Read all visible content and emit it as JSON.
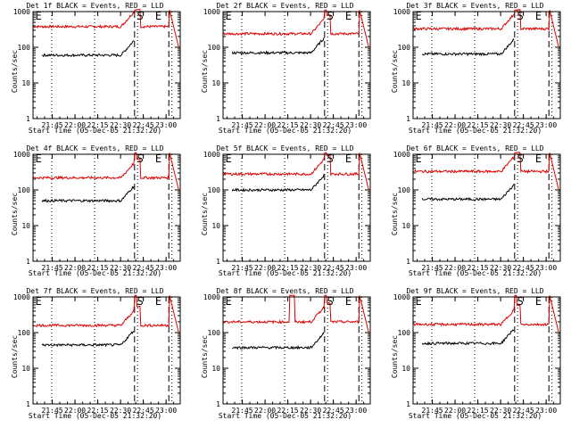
{
  "chart_data": {
    "type": "line",
    "ylabel": "Counts/sec",
    "xlabel": "Start Time (05-Dec-05 21:32:20)",
    "x_tick_labels": [
      "21:45",
      "22:00",
      "22:15",
      "22:30",
      "22:45",
      "23:00"
    ],
    "x_tick_minutes": [
      12.67,
      27.67,
      42.67,
      57.67,
      72.67,
      87.67
    ],
    "xlim": [
      0,
      97
    ],
    "ylim": [
      1,
      1000
    ],
    "yscale": "log",
    "y_tick_labels": [
      "1",
      "10",
      "100",
      "1000"
    ],
    "y_tick_values": [
      1,
      10,
      100,
      1000
    ],
    "series_colors": {
      "events": "#000000",
      "lld": "#dd0000"
    },
    "markers": {
      "dotted_minutes": [
        12.3,
        40.6,
        68.9,
        91.5
      ],
      "dashed_minutes": [
        66.9,
        89.5
      ],
      "letters": [
        {
          "text": "E",
          "x": 1.5
        },
        {
          "text": "S",
          "x": 68.5
        },
        {
          "text": "E",
          "x": 80.5
        }
      ]
    },
    "panels": [
      {
        "title": "Det 1f BLACK = Events, RED = LLD",
        "red_level": 380,
        "black_level": 60,
        "red_start": 0,
        "black_start": 6,
        "spike": null
      },
      {
        "title": "Det 2f BLACK = Events, RED = LLD",
        "red_level": 240,
        "black_level": 70,
        "red_start": 0,
        "black_start": 6,
        "spike": null
      },
      {
        "title": "Det 3f BLACK = Events, RED = LLD",
        "red_level": 330,
        "black_level": 65,
        "red_start": 0,
        "black_start": 6,
        "spike": null
      },
      {
        "title": "Det 4f BLACK = Events, RED = LLD",
        "red_level": 220,
        "black_level": 50,
        "red_start": 0,
        "black_start": 6,
        "spike": null
      },
      {
        "title": "Det 5f BLACK = Events, RED = LLD",
        "red_level": 280,
        "black_level": 100,
        "red_start": 0,
        "black_start": 6,
        "spike": null
      },
      {
        "title": "Det 6f BLACK = Events, RED = LLD",
        "red_level": 330,
        "black_level": 55,
        "red_start": 0,
        "black_start": 6,
        "spike": null
      },
      {
        "title": "Det 7f BLACK = Events, RED = LLD",
        "red_level": 160,
        "black_level": 45,
        "red_start": 0,
        "black_start": 6,
        "spike": null
      },
      {
        "title": "Det 8f BLACK = Events, RED = LLD",
        "red_level": 200,
        "black_level": 38,
        "red_start": 0,
        "black_start": 6,
        "spike": [
          44,
          47
        ]
      },
      {
        "title": "Det 9f BLACK = Events, RED = LLD",
        "red_level": 170,
        "black_level": 50,
        "red_start": 0,
        "black_start": 6,
        "spike": null
      }
    ]
  }
}
